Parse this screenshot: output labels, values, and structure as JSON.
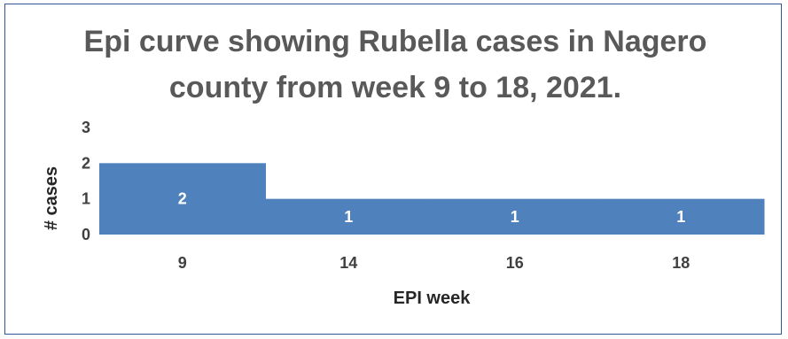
{
  "chart_data": {
    "type": "bar",
    "title_lines": [
      "Epi curve showing Rubella cases in Nagero",
      "county from week 9 to 18, 2021."
    ],
    "categories": [
      "9",
      "14",
      "16",
      "18"
    ],
    "values": [
      2,
      1,
      1,
      1
    ],
    "data_labels": [
      "2",
      "1",
      "1",
      "1"
    ],
    "xlabel": "EPI week",
    "ylabel": "# cases",
    "ylim": [
      0,
      3
    ],
    "yticks": [
      "0",
      "1",
      "2",
      "3"
    ],
    "grid": false,
    "legend": "none",
    "bar_color": "#4f81bd",
    "frame_color": "#2f5597"
  }
}
